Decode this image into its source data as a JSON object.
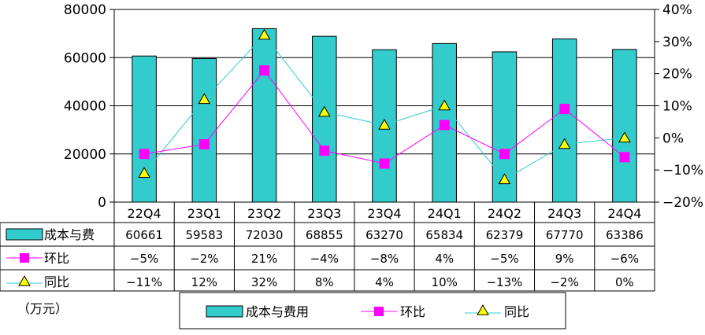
{
  "chart_data": {
    "type": "bar",
    "categories": [
      "22Q4",
      "23Q1",
      "23Q2",
      "23Q3",
      "23Q4",
      "24Q1",
      "24Q2",
      "24Q3",
      "24Q4"
    ],
    "series": [
      {
        "name": "成本与费用",
        "table_label": "成本与费",
        "kind": "bar",
        "axis": "left",
        "color": "#33cccc",
        "values": [
          60661,
          59583,
          72030,
          68855,
          63270,
          65834,
          62379,
          67770,
          63386
        ],
        "labels": [
          "60661",
          "59583",
          "72030",
          "68855",
          "63270",
          "65834",
          "62379",
          "67770",
          "63386"
        ]
      },
      {
        "name": "环比",
        "table_label": "环比",
        "kind": "line",
        "marker": "square",
        "axis": "right",
        "color": "#ff00ff",
        "values": [
          -5,
          -2,
          21,
          -4,
          -8,
          4,
          -5,
          9,
          -6
        ],
        "labels": [
          "−5%",
          "−2%",
          "21%",
          "−4%",
          "−8%",
          "4%",
          "−5%",
          "9%",
          "−6%"
        ]
      },
      {
        "name": "同比",
        "table_label": "同比",
        "kind": "line",
        "marker": "triangle",
        "axis": "right",
        "color": "#33cccc",
        "marker_color": "#ffff00",
        "values": [
          -11,
          12,
          32,
          8,
          4,
          10,
          -13,
          -2,
          0
        ],
        "labels": [
          "−11%",
          "12%",
          "32%",
          "8%",
          "4%",
          "10%",
          "−13%",
          "−2%",
          "0%"
        ]
      }
    ],
    "y_left": {
      "min": 0,
      "max": 80000,
      "ticks": [
        "0",
        "20000",
        "40000",
        "60000",
        "80000"
      ]
    },
    "y_right": {
      "min": -20,
      "max": 40,
      "ticks": [
        "−20%",
        "−10%",
        "0%",
        "10%",
        "20%",
        "30%",
        "40%"
      ]
    },
    "unit_label": "（万元）",
    "gridlines": true,
    "legend_position": "bottom"
  }
}
